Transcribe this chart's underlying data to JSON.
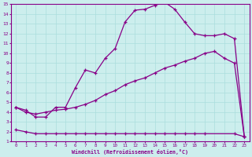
{
  "xlabel": "Windchill (Refroidissement éolien,°C)",
  "xlim": [
    -0.5,
    23.5
  ],
  "ylim": [
    1,
    15
  ],
  "xticks": [
    0,
    1,
    2,
    3,
    4,
    5,
    6,
    7,
    8,
    9,
    10,
    11,
    12,
    13,
    14,
    15,
    16,
    17,
    18,
    19,
    20,
    21,
    22,
    23
  ],
  "yticks": [
    1,
    2,
    3,
    4,
    5,
    6,
    7,
    8,
    9,
    10,
    11,
    12,
    13,
    14,
    15
  ],
  "bg_color": "#cceeed",
  "line_color": "#880088",
  "grid_color": "#aadddd",
  "line1_x": [
    0,
    1,
    2,
    3,
    4,
    5,
    6,
    7,
    8,
    9,
    10,
    11,
    12,
    13,
    14,
    15,
    16,
    17,
    18,
    19,
    20,
    21,
    22,
    23
  ],
  "line1_y": [
    4.5,
    4.2,
    3.5,
    3.5,
    4.5,
    4.5,
    6.5,
    8.3,
    8.0,
    9.5,
    10.5,
    13.2,
    14.4,
    14.5,
    14.9,
    15.2,
    14.5,
    13.2,
    12.0,
    11.8,
    11.8,
    12.0,
    11.5,
    1.5
  ],
  "line2_x": [
    0,
    1,
    2,
    3,
    4,
    5,
    6,
    7,
    8,
    9,
    10,
    11,
    12,
    13,
    14,
    15,
    16,
    17,
    18,
    19,
    20,
    21,
    22,
    23
  ],
  "line2_y": [
    4.5,
    4.0,
    3.8,
    4.0,
    4.2,
    4.3,
    4.5,
    4.8,
    5.2,
    5.8,
    6.2,
    6.8,
    7.2,
    7.5,
    8.0,
    8.5,
    8.8,
    9.2,
    9.5,
    10.0,
    10.2,
    9.5,
    9.0,
    1.5
  ],
  "line3_x": [
    0,
    1,
    2,
    3,
    4,
    5,
    6,
    7,
    8,
    9,
    10,
    11,
    12,
    13,
    14,
    15,
    16,
    17,
    18,
    19,
    22,
    23
  ],
  "line3_y": [
    2.2,
    2.0,
    1.8,
    1.8,
    1.8,
    1.8,
    1.8,
    1.8,
    1.8,
    1.8,
    1.8,
    1.8,
    1.8,
    1.8,
    1.8,
    1.8,
    1.8,
    1.8,
    1.8,
    1.8,
    1.8,
    1.5
  ]
}
